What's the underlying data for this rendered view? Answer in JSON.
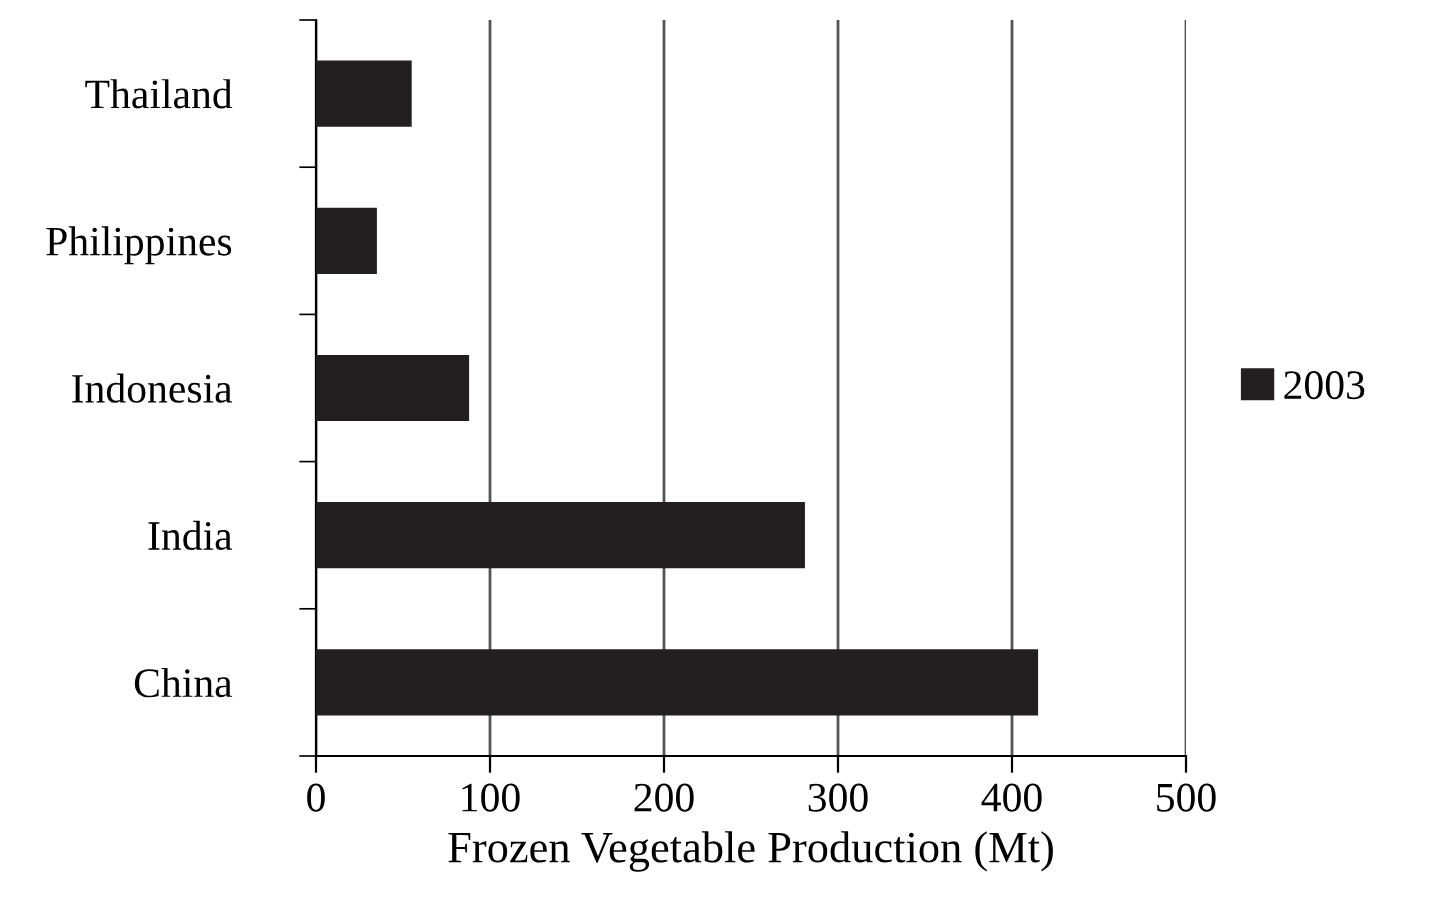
{
  "chart_data": {
    "type": "bar",
    "orientation": "horizontal",
    "xlabel": "Frozen Vegetable Production (Mt)",
    "categories": [
      "Thailand",
      "Philippines",
      "Indonesia",
      "India",
      "China"
    ],
    "series": [
      {
        "name": "2003",
        "color": "#231f20",
        "values": [
          55,
          35,
          88,
          281,
          415
        ]
      }
    ],
    "xlim": [
      0,
      500
    ],
    "xticks": [
      0,
      100,
      200,
      300,
      400,
      500
    ],
    "grid": "x",
    "legend": "right"
  }
}
